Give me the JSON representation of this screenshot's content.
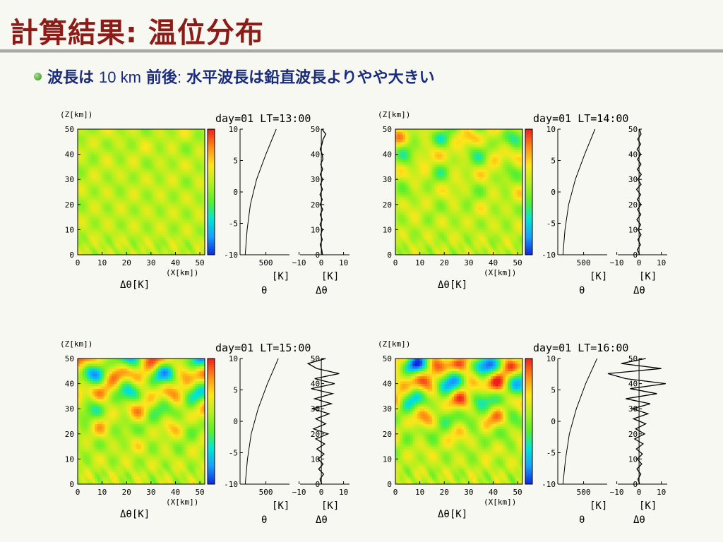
{
  "slide": {
    "title": "計算結果: 温位分布",
    "bullet_prefix": "波長は",
    "bullet_value": "10 km",
    "bullet_rest_bold": "前後",
    "bullet_colon": ":",
    "bullet_suffix": "水平波長は鉛直波長よりやや大きい"
  },
  "colors": {
    "title": "#8c1c18",
    "bullet_text": "#1a2c7a",
    "bullet_dot": "#3c9a2c",
    "colormap": [
      "#0a28e0",
      "#16a0ff",
      "#00e6d2",
      "#5cf02a",
      "#b4f01e",
      "#ffe61a",
      "#ff8c14",
      "#f01e1e"
    ]
  },
  "chart_data": [
    {
      "type": "heatmap",
      "title": "day=01  LT=13:00",
      "field_label": "Δθ[K]",
      "xlabel": "(X[km])",
      "ylabel": "(Z[km])",
      "x_ticks": [
        "0",
        "10",
        "20",
        "30",
        "40",
        "50"
      ],
      "y_ticks": [
        "0",
        "10",
        "20",
        "30",
        "40",
        "50"
      ],
      "xlim": [
        0,
        52
      ],
      "ylim": [
        0,
        50
      ],
      "colorbar": {
        "range": [
          -10,
          10
        ],
        "ticks": [
          "10",
          "5",
          "0",
          "-5",
          "-10"
        ]
      },
      "intensity": 0.12,
      "theta_profile": {
        "xlabel": "[K]",
        "symbol": "θ",
        "x_ticks": [
          "500"
        ],
        "z": [
          0,
          10,
          20,
          30,
          40,
          50
        ],
        "theta_K": [
          300,
          318,
          350,
          410,
          500,
          600
        ],
        "xlim": [
          250,
          800
        ]
      },
      "dtheta_profile": {
        "xlabel": "[K]",
        "symbol": "Δθ",
        "x_ticks": [
          "−10",
          "0",
          "10"
        ],
        "xlim": [
          -10,
          10
        ],
        "z": [
          0,
          2,
          4,
          6,
          8,
          10,
          12,
          14,
          16,
          18,
          20,
          22,
          24,
          26,
          28,
          30,
          32,
          34,
          36,
          38,
          40,
          42,
          44,
          46,
          48,
          50
        ],
        "values": [
          0.5,
          0.2,
          -0.5,
          0.4,
          -0.3,
          0.5,
          -0.6,
          0.4,
          -0.5,
          0.6,
          -0.5,
          0.4,
          -0.6,
          0.5,
          -0.4,
          0.6,
          -0.5,
          0.6,
          -0.3,
          0.7,
          0.4,
          -0.5,
          0.3,
          0.8,
          2.0,
          0.3
        ]
      }
    },
    {
      "type": "heatmap",
      "title": "day=01  LT=14:00",
      "field_label": "Δθ[K]",
      "xlabel": "(X[km])",
      "ylabel": "(Z[km])",
      "x_ticks": [
        "0",
        "10",
        "20",
        "30",
        "40",
        "50"
      ],
      "y_ticks": [
        "0",
        "10",
        "20",
        "30",
        "40",
        "50"
      ],
      "xlim": [
        0,
        52
      ],
      "ylim": [
        0,
        50
      ],
      "colorbar": {
        "range": [
          -10,
          10
        ],
        "ticks": [
          "10",
          "5",
          "0",
          "-5",
          "-10"
        ]
      },
      "intensity": 0.5,
      "theta_profile": {
        "xlabel": "[K]",
        "symbol": "θ",
        "x_ticks": [
          "500"
        ],
        "z": [
          0,
          10,
          20,
          30,
          40,
          50
        ],
        "theta_K": [
          300,
          320,
          355,
          420,
          510,
          610
        ],
        "xlim": [
          250,
          800
        ]
      },
      "dtheta_profile": {
        "xlabel": "[K]",
        "symbol": "Δθ",
        "x_ticks": [
          "−10",
          "0",
          "10"
        ],
        "xlim": [
          -10,
          10
        ],
        "z": [
          0,
          2,
          4,
          6,
          8,
          10,
          12,
          14,
          16,
          18,
          20,
          22,
          24,
          26,
          28,
          30,
          32,
          34,
          36,
          38,
          40,
          42,
          44,
          46,
          48,
          50
        ],
        "values": [
          0.3,
          -0.8,
          0.6,
          -0.5,
          0.9,
          -0.6,
          0.7,
          -1.0,
          0.8,
          -0.7,
          0.9,
          -0.8,
          0.7,
          -1.1,
          0.9,
          -0.6,
          1.0,
          -0.8,
          0.9,
          -0.7,
          0.8,
          -0.9,
          0.7,
          -0.6,
          0.9,
          0.2
        ]
      }
    },
    {
      "type": "heatmap",
      "title": "day=01  LT=15:00",
      "field_label": "Δθ[K]",
      "xlabel": "(X[km])",
      "ylabel": "(Z[km])",
      "x_ticks": [
        "0",
        "10",
        "20",
        "30",
        "40",
        "50"
      ],
      "y_ticks": [
        "0",
        "10",
        "20",
        "30",
        "40",
        "50"
      ],
      "xlim": [
        0,
        52
      ],
      "ylim": [
        0,
        50
      ],
      "colorbar": {
        "range": [
          -10,
          10
        ],
        "ticks": [
          "10",
          "5",
          "0",
          "-5",
          "-10"
        ]
      },
      "intensity": 0.85,
      "theta_profile": {
        "xlabel": "[K]",
        "symbol": "θ",
        "x_ticks": [
          "500"
        ],
        "z": [
          0,
          10,
          20,
          30,
          40,
          50
        ],
        "theta_K": [
          300,
          322,
          358,
          425,
          515,
          620
        ],
        "xlim": [
          250,
          800
        ]
      },
      "dtheta_profile": {
        "xlabel": "[K]",
        "symbol": "Δθ",
        "x_ticks": [
          "−10",
          "0",
          "10"
        ],
        "xlim": [
          -10,
          10
        ],
        "z": [
          0,
          2,
          4,
          6,
          8,
          10,
          12,
          14,
          16,
          18,
          20,
          22,
          24,
          26,
          28,
          30,
          32,
          34,
          36,
          38,
          40,
          42,
          44,
          46,
          48,
          50
        ],
        "values": [
          0.2,
          -0.6,
          1.0,
          -1.2,
          0.8,
          -1.5,
          1.2,
          -2.0,
          1.5,
          -2.5,
          3.0,
          -3.5,
          2.0,
          -2.5,
          3.5,
          -4.0,
          4.5,
          -3.0,
          5.0,
          -4.5,
          6.0,
          -3.0,
          8.0,
          -2.0,
          -6.0,
          2.0
        ]
      }
    },
    {
      "type": "heatmap",
      "title": "day=01  LT=16:00",
      "field_label": "Δθ[K]",
      "xlabel": "(X[km])",
      "ylabel": "(Z[km])",
      "x_ticks": [
        "0",
        "10",
        "20",
        "30",
        "40",
        "50"
      ],
      "y_ticks": [
        "0",
        "10",
        "20",
        "30",
        "40",
        "50"
      ],
      "xlim": [
        0,
        52
      ],
      "ylim": [
        0,
        50
      ],
      "colorbar": {
        "range": [
          -10,
          10
        ],
        "ticks": [
          "10",
          "5",
          "0",
          "-5",
          "-10"
        ]
      },
      "intensity": 1.0,
      "theta_profile": {
        "xlabel": "[K]",
        "symbol": "θ",
        "x_ticks": [
          "500"
        ],
        "z": [
          0,
          10,
          20,
          30,
          40,
          50
        ],
        "theta_K": [
          300,
          325,
          362,
          430,
          520,
          630
        ],
        "xlim": [
          250,
          800
        ]
      },
      "dtheta_profile": {
        "xlabel": "[K]",
        "symbol": "Δθ",
        "x_ticks": [
          "−10",
          "0",
          "10"
        ],
        "xlim": [
          -10,
          10
        ],
        "z": [
          0,
          2,
          4,
          6,
          8,
          10,
          12,
          14,
          16,
          18,
          20,
          22,
          24,
          26,
          28,
          30,
          32,
          34,
          36,
          38,
          40,
          42,
          44,
          46,
          48,
          50
        ],
        "values": [
          0.3,
          -0.5,
          0.8,
          -1.0,
          1.2,
          -0.8,
          1.5,
          -1.2,
          1.8,
          -2.0,
          2.5,
          -1.5,
          3.0,
          -2.5,
          4.0,
          -3.0,
          5.0,
          -6.0,
          8.0,
          -4.0,
          12.0,
          -6.0,
          -14.0,
          10.0,
          -8.0,
          3.0
        ]
      }
    }
  ]
}
